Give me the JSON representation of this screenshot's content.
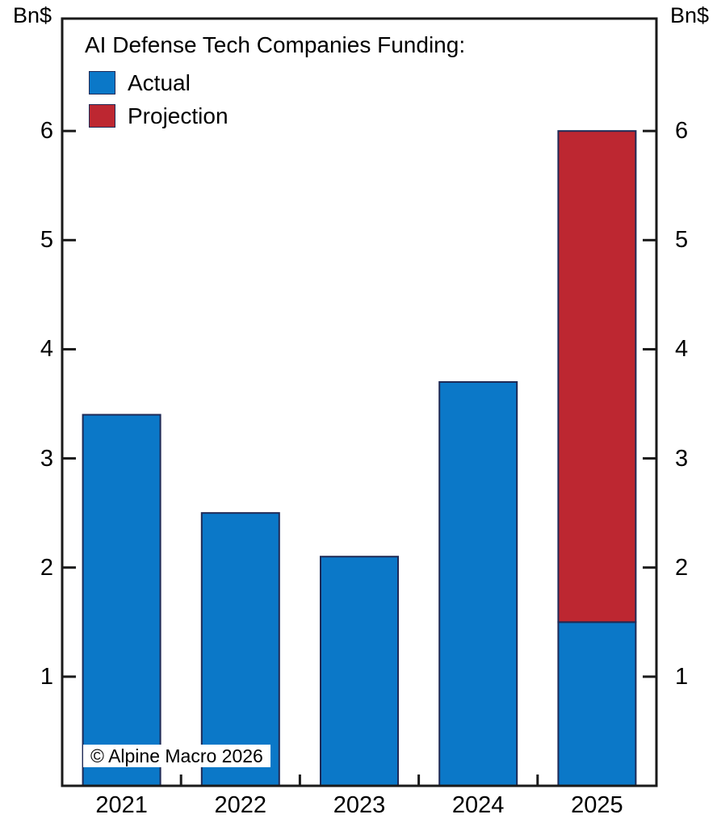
{
  "chart_data": {
    "type": "bar",
    "stacked": true,
    "title": "AI Defense Tech Companies Funding:",
    "unit_label_left": "Bn$",
    "unit_label_right": "Bn$",
    "categories": [
      "2021",
      "2022",
      "2023",
      "2024",
      "2025"
    ],
    "series": [
      {
        "name": "Actual",
        "color": "#0b78c8",
        "values": [
          3.4,
          2.5,
          2.1,
          3.7,
          1.5
        ]
      },
      {
        "name": "Projection",
        "color": "#bd2731",
        "values": [
          0,
          0,
          0,
          0,
          4.5
        ]
      }
    ],
    "ylim": [
      0,
      7.03
    ],
    "yticks": [
      1,
      2,
      3,
      4,
      5,
      6
    ],
    "grid": false,
    "legend_position": "top-left",
    "axis_color": "#1a1a1a",
    "bar_edge_color": "#1f2a56",
    "watermark": "© Alpine Macro 2026"
  }
}
